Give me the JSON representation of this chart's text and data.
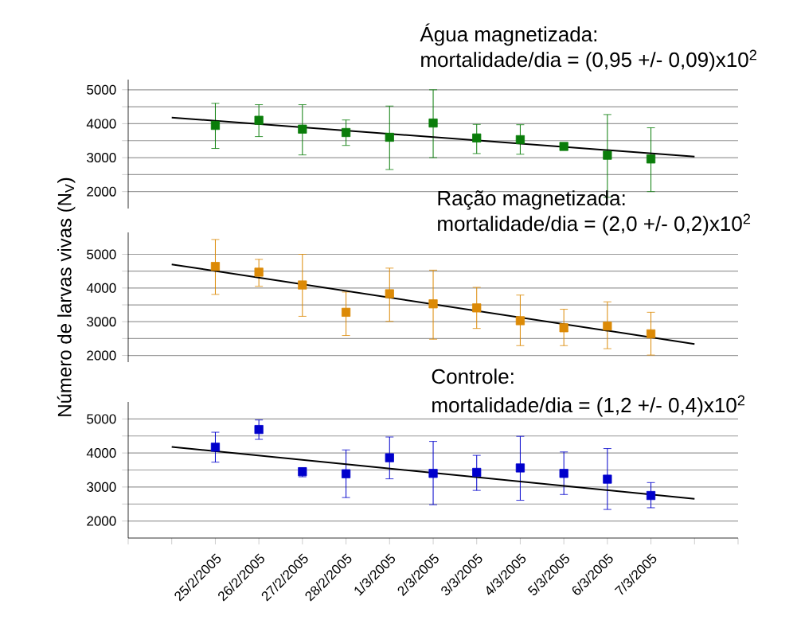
{
  "chart_data": [
    {
      "type": "scatter",
      "title": "Água magnetizada:",
      "subtitle": "mortalidade/dia = (0,95 +/- 0,09)x10$^{2}$",
      "x": [
        "2005-02-25",
        "2005-02-26",
        "2005-02-27",
        "2005-02-28",
        "2005-03-01",
        "2005-03-02",
        "2005-03-03",
        "2005-03-04",
        "2005-03-05",
        "2005-03-06",
        "2005-03-07"
      ],
      "series": [
        {
          "color": "#0a7d0a",
          "marker": "square",
          "values": [
            3950,
            4100,
            3840,
            3740,
            3600,
            4020,
            3580,
            3530,
            3330,
            3070,
            2960
          ],
          "errors": [
            [
              3270,
              4600
            ],
            [
              3620,
              4560
            ],
            [
              3080,
              4560
            ],
            [
              3360,
              4110
            ],
            [
              2650,
              4520
            ],
            [
              3000,
              5000
            ],
            [
              3120,
              3980
            ],
            [
              3100,
              3970
            ],
            null,
            [
              1830,
              4270
            ],
            [
              2000,
              3880
            ]
          ]
        },
        {
          "type": "line",
          "color": "#000000",
          "marker": "none",
          "x": [
            "2005-02-24",
            "2005-03-08"
          ],
          "values": [
            4180,
            3030
          ]
        }
      ],
      "xlim": [
        "2005-02-23",
        "2005-03-09"
      ],
      "ylim": [
        1500,
        5300
      ],
      "yticks": [
        2000,
        {
          "value": 2500,
          "label": null
        },
        3000,
        {
          "value": 3500,
          "label": null
        },
        4000,
        {
          "value": 4500,
          "label": null
        },
        5000
      ],
      "tick_labels": "y",
      "grid": "y"
    },
    {
      "type": "scatter",
      "title": "Ração magnetizada:",
      "subtitle": "mortalidade/dia = (2,0 +/- 0,2)x10$^{2}$",
      "ylabel": "Número de larvas vivas (N$_{V}$)",
      "x": [
        "2005-02-25",
        "2005-02-26",
        "2005-02-27",
        "2005-02-28",
        "2005-03-01",
        "2005-03-02",
        "2005-03-03",
        "2005-03-04",
        "2005-03-05",
        "2005-03-06",
        "2005-03-07"
      ],
      "series": [
        {
          "color": "#dc8a06",
          "marker": "square",
          "values": [
            4640,
            4470,
            4090,
            3280,
            3830,
            3530,
            3410,
            3030,
            2820,
            2870,
            2640
          ],
          "errors": [
            [
              3810,
              5440
            ],
            [
              4050,
              4850
            ],
            [
              3160,
              5000
            ],
            [
              2590,
              3880
            ],
            [
              3010,
              4590
            ],
            [
              2480,
              4530
            ],
            [
              2800,
              4020
            ],
            [
              2290,
              3790
            ],
            [
              2290,
              3370
            ],
            [
              2200,
              3590
            ],
            [
              2010,
              3280
            ]
          ]
        },
        {
          "type": "line",
          "color": "#000000",
          "marker": "none",
          "x": [
            "2005-02-24",
            "2005-03-08"
          ],
          "values": [
            4700,
            2340
          ]
        }
      ],
      "xlim": [
        "2005-02-23",
        "2005-03-09"
      ],
      "ylim": [
        1800,
        5650
      ],
      "yticks": [
        2000,
        {
          "value": 2500,
          "label": null
        },
        3000,
        {
          "value": 3500,
          "label": null
        },
        4000,
        {
          "value": 4500,
          "label": null
        },
        5000
      ],
      "tick_labels": "y",
      "grid": "y"
    },
    {
      "type": "scatter",
      "title": "Controle:",
      "subtitle": "mortalidade/dia = (1,2 +/- 0,4)x10$^{2}$",
      "x": [
        "2005-02-25",
        "2005-02-26",
        "2005-02-27",
        "2005-02-28",
        "2005-03-01",
        "2005-03-02",
        "2005-03-03",
        "2005-03-04",
        "2005-03-05",
        "2005-03-06",
        "2005-03-07"
      ],
      "series": [
        {
          "color": "#0000cc",
          "marker": "square",
          "values": [
            4170,
            4690,
            3450,
            3390,
            3860,
            3400,
            3430,
            3560,
            3400,
            3230,
            2750
          ],
          "errors": [
            [
              3730,
              4610
            ],
            [
              4400,
              4970
            ],
            [
              3300,
              3570
            ],
            [
              2690,
              4090
            ],
            [
              3240,
              4470
            ],
            [
              2480,
              4340
            ],
            [
              2900,
              3930
            ],
            [
              2610,
              4490
            ],
            [
              2780,
              4030
            ],
            [
              2340,
              4130
            ],
            [
              2390,
              3130
            ]
          ]
        },
        {
          "type": "line",
          "color": "#000000",
          "marker": "none",
          "x": [
            "2005-02-24",
            "2005-03-08"
          ],
          "values": [
            4180,
            2650
          ]
        }
      ],
      "xlim": [
        "2005-02-23",
        "2005-03-09"
      ],
      "ylim": [
        1500,
        5500
      ],
      "xticks": [
        {
          "value": "2005-02-23",
          "label": null
        },
        {
          "value": "2005-02-24",
          "label": null
        },
        {
          "value": "2005-02-25",
          "label": "25/2/2005"
        },
        {
          "value": "2005-02-26",
          "label": "26/2/2005"
        },
        {
          "value": "2005-02-27",
          "label": "27/2/2005"
        },
        {
          "value": "2005-02-28",
          "label": "28/2/2005"
        },
        {
          "value": "2005-03-01",
          "label": "1/3/2005"
        },
        {
          "value": "2005-03-02",
          "label": "2/3/2005"
        },
        {
          "value": "2005-03-03",
          "label": "3/3/2005"
        },
        {
          "value": "2005-03-04",
          "label": "4/3/2005"
        },
        {
          "value": "2005-03-05",
          "label": "5/3/2005"
        },
        {
          "value": "2005-03-06",
          "label": "6/3/2005"
        },
        {
          "value": "2005-03-07",
          "label": "7/3/2005"
        },
        {
          "value": "2005-03-08",
          "label": null
        },
        {
          "value": "2005-03-09",
          "label": null
        }
      ],
      "yticks": [
        2000,
        {
          "value": 2500,
          "label": null
        },
        3000,
        {
          "value": 3500,
          "label": null
        },
        4000,
        {
          "value": 4500,
          "label": null
        },
        5000
      ],
      "grid": "y"
    }
  ]
}
